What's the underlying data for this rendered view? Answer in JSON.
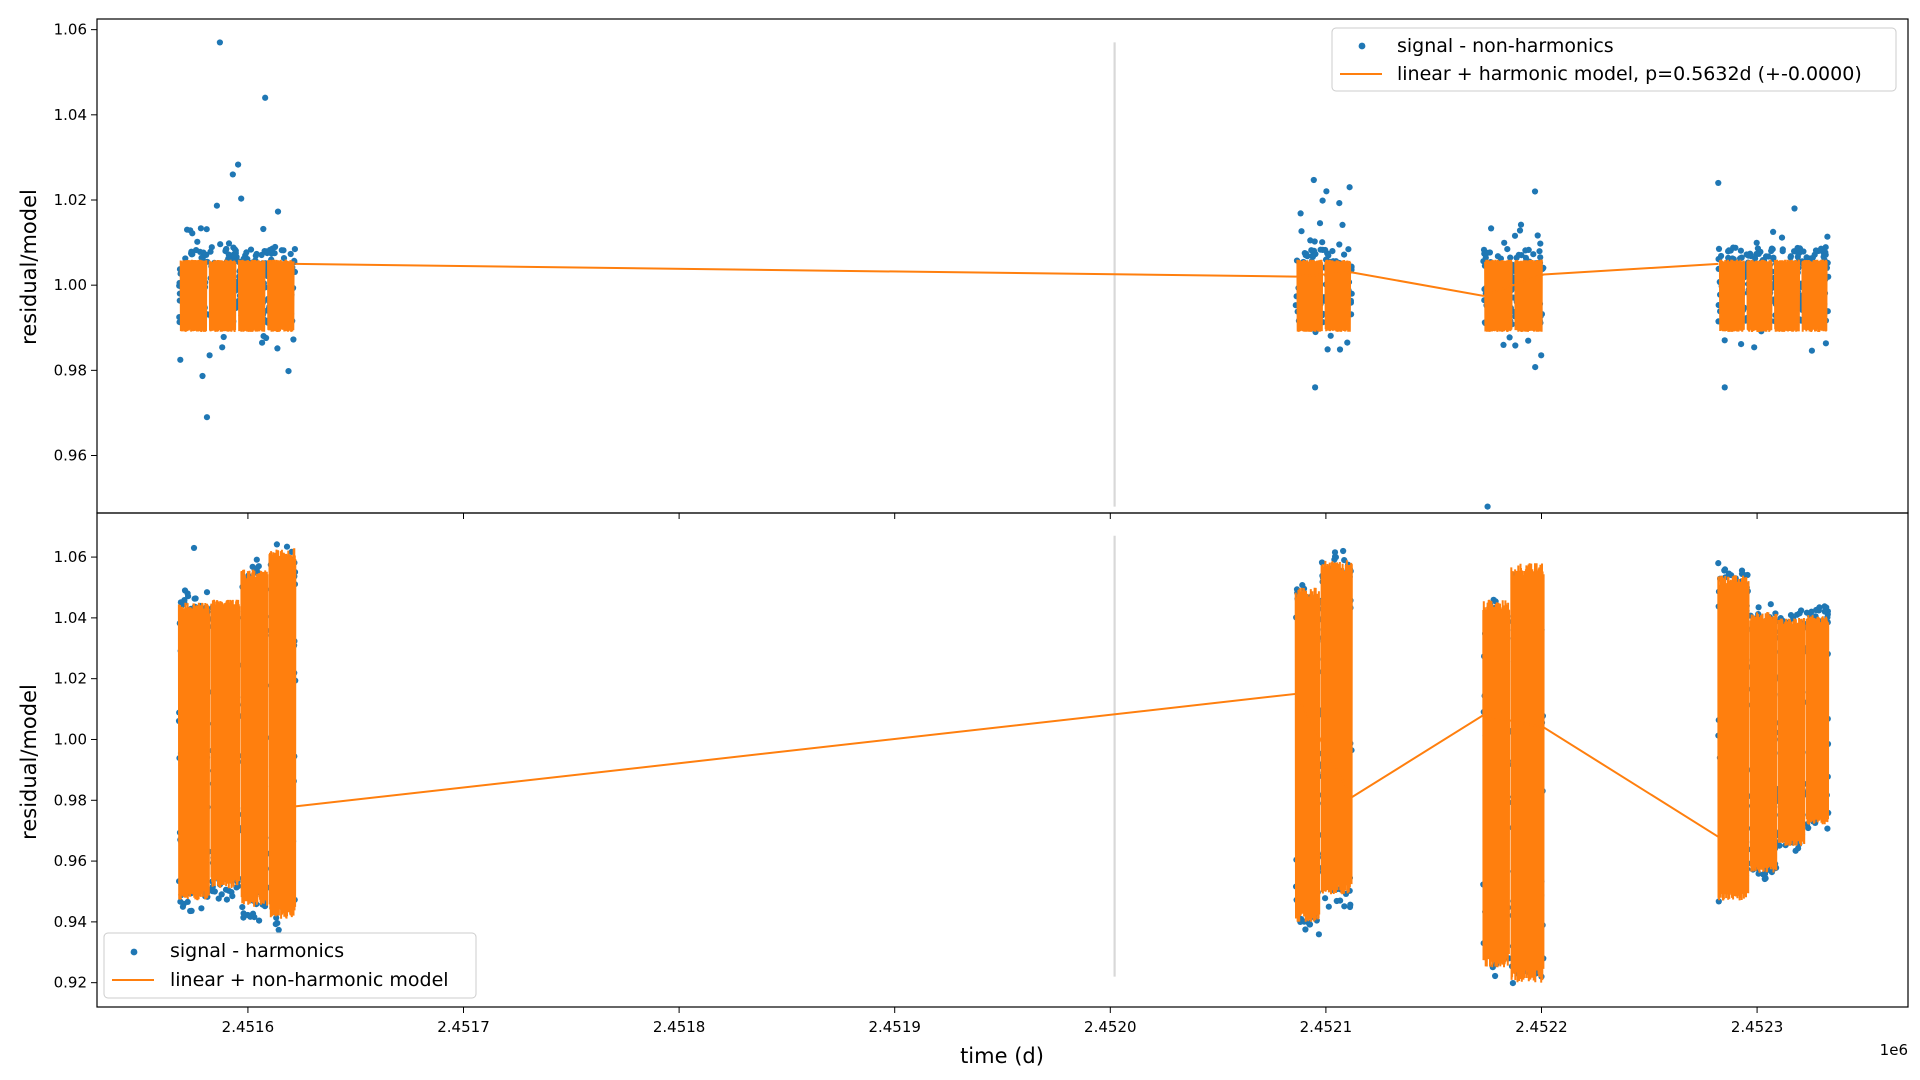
{
  "chart_data": [
    {
      "type": "scatter",
      "panel": "top",
      "ylabel": "residual/model",
      "xlim": [
        2451530,
        2452370
      ],
      "ylim": [
        0.9465,
        1.0625
      ],
      "xticks": [
        2451600,
        2451700,
        2451800,
        2451900,
        2452000,
        2452100,
        2452200,
        2452300
      ],
      "yticks": [
        0.96,
        0.98,
        1.0,
        1.02,
        1.04,
        1.06
      ],
      "ytick_labels": [
        "0.96",
        "0.98",
        "1.00",
        "1.02",
        "1.04",
        "1.06"
      ],
      "vline": {
        "x": 2452002,
        "ymin": 0.948,
        "ymax": 1.057,
        "color": "#d8d8d8"
      },
      "legend": {
        "placement": "upper right",
        "entries": [
          "signal - non-harmonics",
          "linear + harmonic model, p=0.5632d (+-0.0000)"
        ]
      },
      "series": [
        {
          "name": "signal - non-harmonics",
          "kind": "scatter",
          "color": "#1f77b4",
          "blocks": [
            {
              "start": 2451568,
              "end": 2451622,
              "mean": 1.0,
              "spread": 0.009,
              "wide": 0.016
            },
            {
              "start": 2452086,
              "end": 2452112,
              "mean": 1.0,
              "spread": 0.009,
              "wide": 0.015
            },
            {
              "start": 2452173,
              "end": 2452201,
              "mean": 0.9995,
              "spread": 0.009,
              "wide": 0.016
            },
            {
              "start": 2452282,
              "end": 2452333,
              "mean": 1.0,
              "spread": 0.009,
              "wide": 0.014
            }
          ],
          "outliers": [
            [
              2451587,
              1.057
            ],
            [
              2451608,
              1.044
            ],
            [
              2451593,
              1.026
            ],
            [
              2451581,
              0.969
            ],
            [
              2452175,
              0.948
            ],
            [
              2452197,
              1.022
            ],
            [
              2452282,
              1.024
            ],
            [
              2452111,
              1.023
            ],
            [
              2452285,
              0.976
            ],
            [
              2452095,
              0.976
            ]
          ]
        },
        {
          "name": "linear + harmonic model, p=0.5632d (+-0.0000)",
          "kind": "line",
          "color": "#ff7f0e",
          "blocks": [
            {
              "start": 2451568,
              "end": 2451622,
              "mean": 0.9975,
              "amp": 0.0085,
              "segments": 4
            },
            {
              "start": 2452086,
              "end": 2452112,
              "mean": 0.9975,
              "amp": 0.0085,
              "segments": 2
            },
            {
              "start": 2452173,
              "end": 2452201,
              "mean": 0.9975,
              "amp": 0.0085,
              "segments": 2
            },
            {
              "start": 2452282,
              "end": 2452333,
              "mean": 0.9975,
              "amp": 0.0085,
              "segments": 4
            }
          ],
          "trend": [
            [
              2451622,
              1.005
            ],
            [
              2452086,
              1.002
            ],
            [
              2452112,
              1.003
            ],
            [
              2452173,
              0.9975
            ],
            [
              2452201,
              1.0025
            ],
            [
              2452282,
              1.005
            ]
          ]
        }
      ]
    },
    {
      "type": "scatter",
      "panel": "bottom",
      "xlabel": "time (d)",
      "ylabel": "residual/model",
      "x_offset_label": "1e6",
      "xlim": [
        2451530,
        2452370
      ],
      "ylim": [
        0.912,
        1.0745
      ],
      "xticks": [
        2451600,
        2451700,
        2451800,
        2451900,
        2452000,
        2452100,
        2452200,
        2452300
      ],
      "xtick_labels": [
        "2.4516",
        "2.4517",
        "2.4518",
        "2.4519",
        "2.4520",
        "2.4521",
        "2.4522",
        "2.4523"
      ],
      "yticks": [
        0.92,
        0.94,
        0.96,
        0.98,
        1.0,
        1.02,
        1.04,
        1.06
      ],
      "ytick_labels": [
        "0.92",
        "0.94",
        "0.96",
        "0.98",
        "1.00",
        "1.02",
        "1.04",
        "1.06"
      ],
      "vline": {
        "x": 2452002,
        "ymin": 0.922,
        "ymax": 1.067,
        "color": "#d8d8d8"
      },
      "legend": {
        "placement": "lower left",
        "entries": [
          "signal - harmonics",
          "linear + non-harmonic model"
        ]
      },
      "series": [
        {
          "name": "signal - harmonics",
          "kind": "scatter",
          "color": "#1f77b4",
          "blocks": [
            {
              "start": 2451568,
              "end": 2451582,
              "low": 0.942,
              "high": 1.05
            },
            {
              "start": 2451583,
              "end": 2451596,
              "low": 0.946,
              "high": 1.047
            },
            {
              "start": 2451597,
              "end": 2451609,
              "low": 0.94,
              "high": 1.06
            },
            {
              "start": 2451610,
              "end": 2451622,
              "low": 0.937,
              "high": 1.066
            },
            {
              "start": 2452086,
              "end": 2452097,
              "low": 0.935,
              "high": 1.052
            },
            {
              "start": 2452098,
              "end": 2452112,
              "low": 0.944,
              "high": 1.062
            },
            {
              "start": 2452173,
              "end": 2452185,
              "low": 0.922,
              "high": 1.047
            },
            {
              "start": 2452186,
              "end": 2452201,
              "low": 0.919,
              "high": 1.058
            },
            {
              "start": 2452282,
              "end": 2452296,
              "low": 0.944,
              "high": 1.058
            },
            {
              "start": 2452297,
              "end": 2452309,
              "low": 0.953,
              "high": 1.045
            },
            {
              "start": 2452310,
              "end": 2452322,
              "low": 0.962,
              "high": 1.043
            },
            {
              "start": 2452323,
              "end": 2452333,
              "low": 0.97,
              "high": 1.044
            }
          ],
          "outliers": [
            [
              2451575,
              1.063
            ],
            [
              2452108,
              1.062
            ],
            [
              2452282,
              1.058
            ],
            [
              2452200,
              0.922
            ]
          ]
        },
        {
          "name": "linear + non-harmonic model",
          "kind": "line",
          "color": "#ff7f0e",
          "blocks": [
            {
              "start": 2451568,
              "end": 2451582,
              "low": 0.947,
              "high": 1.045
            },
            {
              "start": 2451583,
              "end": 2451596,
              "low": 0.951,
              "high": 1.046
            },
            {
              "start": 2451597,
              "end": 2451609,
              "low": 0.945,
              "high": 1.056
            },
            {
              "start": 2451610,
              "end": 2451622,
              "low": 0.941,
              "high": 1.063
            },
            {
              "start": 2452086,
              "end": 2452097,
              "low": 0.94,
              "high": 1.05
            },
            {
              "start": 2452098,
              "end": 2452112,
              "low": 0.949,
              "high": 1.059
            },
            {
              "start": 2452173,
              "end": 2452185,
              "low": 0.925,
              "high": 1.046
            },
            {
              "start": 2452186,
              "end": 2452201,
              "low": 0.92,
              "high": 1.058
            },
            {
              "start": 2452282,
              "end": 2452296,
              "low": 0.947,
              "high": 1.054
            },
            {
              "start": 2452297,
              "end": 2452309,
              "low": 0.956,
              "high": 1.042
            },
            {
              "start": 2452310,
              "end": 2452322,
              "low": 0.965,
              "high": 1.04
            },
            {
              "start": 2452323,
              "end": 2452333,
              "low": 0.972,
              "high": 1.041
            }
          ],
          "trend": [
            [
              2451622,
              0.978
            ],
            [
              2452086,
              1.015
            ],
            [
              2452112,
              0.981
            ],
            [
              2452173,
              1.008
            ],
            [
              2452201,
              1.004
            ],
            [
              2452282,
              0.968
            ]
          ]
        }
      ]
    }
  ]
}
